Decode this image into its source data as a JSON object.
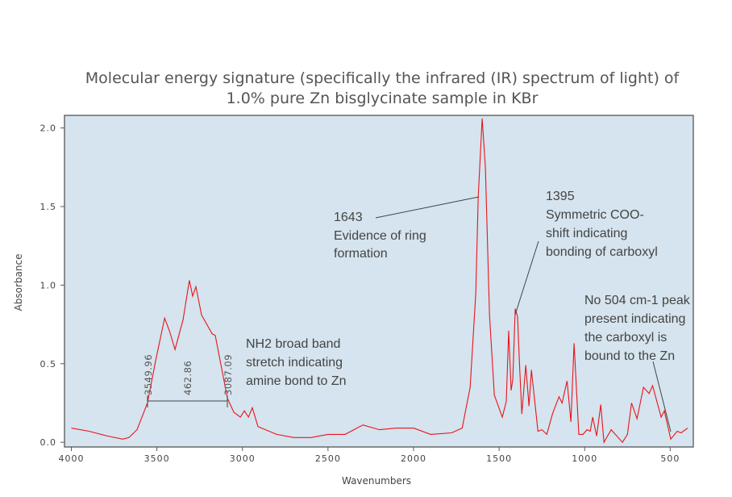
{
  "chart_data": {
    "type": "line",
    "title": [
      "Molecular energy signature (specifically the infrared (IR) spectrum of light) of",
      "1.0% pure Zn bisglycinate sample in KBr"
    ],
    "xlabel": "Wavenumbers",
    "ylabel": "Absorbance",
    "xlim": [
      4040,
      365
    ],
    "ylim": [
      -0.03,
      2.08
    ],
    "x_reversed": true,
    "grid": false,
    "background_color": "#d5e4ee",
    "line_color": "#e8141b",
    "xticks": [
      4000,
      3500,
      3000,
      2500,
      2000,
      1500,
      1000,
      500
    ],
    "xtick_labels": [
      "4000",
      "3500",
      "3000",
      "2500",
      "2000",
      "1500",
      "1000",
      "500"
    ],
    "yticks": [
      0.0,
      0.5,
      1.0,
      1.5,
      2.0
    ],
    "ytick_labels": [
      "0.0",
      "0.5",
      "1.0",
      "1.5",
      "2.0"
    ],
    "series": [
      {
        "x": [
          4000,
          3897,
          3790,
          3700,
          3663,
          3616,
          3555,
          3507,
          3455,
          3427,
          3394,
          3347,
          3310,
          3291,
          3272,
          3239,
          3177,
          3159,
          3088,
          3050,
          3012,
          2989,
          2965,
          2942,
          2909,
          2800,
          2700,
          2600,
          2500,
          2400,
          2296,
          2200,
          2100,
          2000,
          1900,
          1778,
          1716,
          1669,
          1636,
          1622,
          1599,
          1580,
          1556,
          1528,
          1481,
          1458,
          1444,
          1430,
          1420,
          1406,
          1392,
          1381,
          1367,
          1344,
          1325,
          1311,
          1273,
          1250,
          1221,
          1188,
          1150,
          1132,
          1103,
          1080,
          1062,
          1034,
          1010,
          986,
          967,
          953,
          930,
          906,
          887,
          845,
          779,
          750,
          726,
          694,
          656,
          623,
          603,
          553,
          534,
          497,
          459,
          436,
          398
        ],
        "y": [
          0.09,
          0.07,
          0.04,
          0.02,
          0.03,
          0.08,
          0.25,
          0.52,
          0.79,
          0.71,
          0.59,
          0.78,
          1.03,
          0.93,
          0.99,
          0.81,
          0.69,
          0.68,
          0.28,
          0.19,
          0.16,
          0.2,
          0.16,
          0.22,
          0.1,
          0.05,
          0.03,
          0.03,
          0.05,
          0.05,
          0.11,
          0.08,
          0.09,
          0.09,
          0.05,
          0.06,
          0.09,
          0.35,
          0.95,
          1.56,
          2.06,
          1.75,
          0.81,
          0.3,
          0.16,
          0.26,
          0.71,
          0.33,
          0.4,
          0.85,
          0.8,
          0.5,
          0.18,
          0.49,
          0.23,
          0.46,
          0.07,
          0.08,
          0.05,
          0.18,
          0.29,
          0.25,
          0.39,
          0.13,
          0.63,
          0.05,
          0.05,
          0.08,
          0.07,
          0.16,
          0.04,
          0.24,
          0.0,
          0.08,
          0.0,
          0.05,
          0.25,
          0.15,
          0.35,
          0.31,
          0.36,
          0.16,
          0.2,
          0.02,
          0.07,
          0.06,
          0.09
        ]
      }
    ],
    "bracket": {
      "from": 3549.96,
      "to": 3087.09,
      "level": 0.26,
      "labels": [
        "3549.96",
        "462.86",
        "3087.09"
      ]
    },
    "annotations": [
      {
        "lines": [
          "1643",
          "Evidence of ring",
          "formation"
        ],
        "target_x": 1622
      },
      {
        "lines": [
          "1395",
          "Symmetric COO-",
          "shift indicating",
          "bonding of carboxyl"
        ],
        "target_x": 1395
      },
      {
        "lines": [
          "NH2 broad band",
          "stretch indicating",
          "amine bond to Zn"
        ]
      },
      {
        "lines": [
          "No 504 cm-1 peak",
          "present indicating",
          "the carboxyl is",
          "bound to the Zn"
        ],
        "target_x": 500
      }
    ]
  }
}
